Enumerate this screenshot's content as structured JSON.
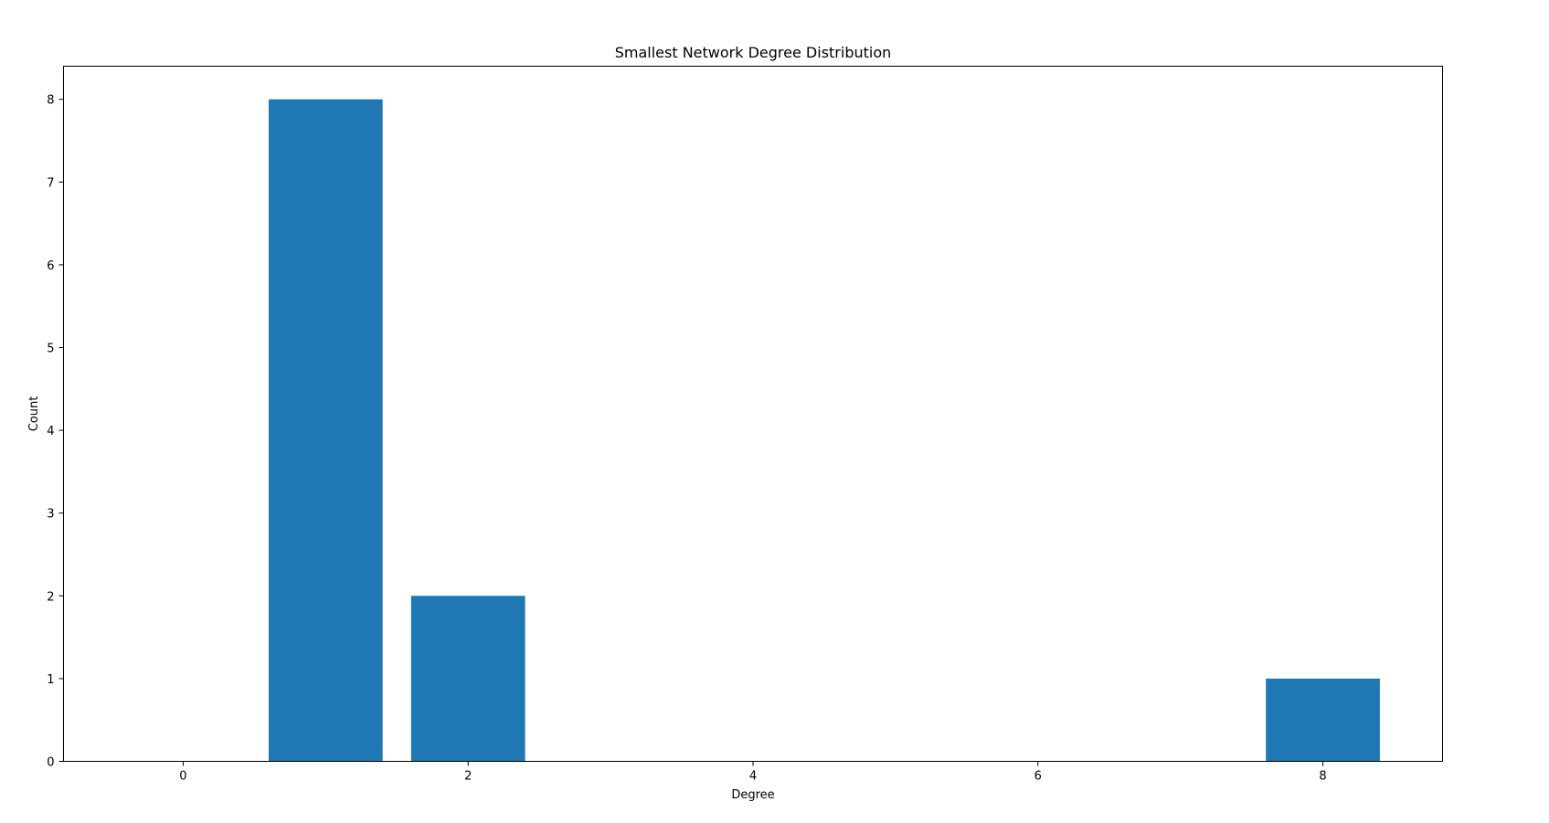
{
  "chart_data": {
    "type": "bar",
    "title": "Smallest Network Degree Distribution",
    "xlabel": "Degree",
    "ylabel": "Count",
    "x": [
      1,
      2,
      8
    ],
    "values": [
      8,
      2,
      1
    ],
    "bar_width": 0.8,
    "xlim": [
      -0.84,
      8.84
    ],
    "ylim": [
      0,
      8.4
    ],
    "xticks": [
      0,
      2,
      4,
      6,
      8
    ],
    "yticks": [
      0,
      1,
      2,
      3,
      4,
      5,
      6,
      7,
      8
    ],
    "bar_color": "#1f77b4",
    "grid": false
  }
}
